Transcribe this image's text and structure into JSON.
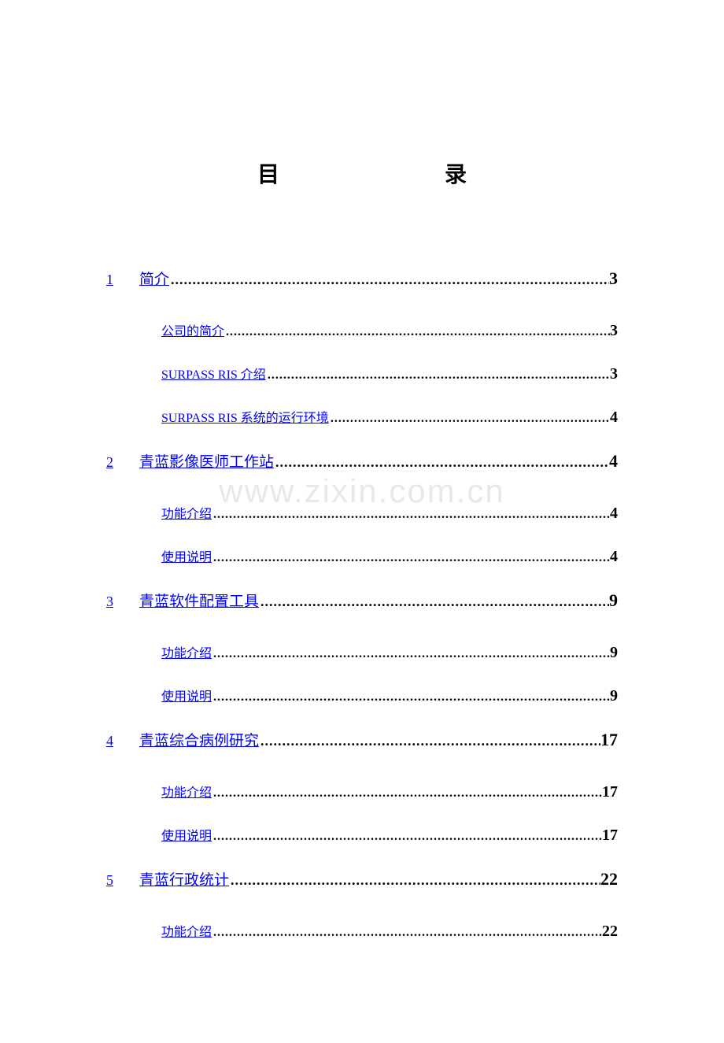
{
  "title": {
    "char1": "目",
    "char2": "录"
  },
  "watermark": "www.zixin.com.cn",
  "colors": {
    "link": "#0000ff",
    "text": "#000000",
    "watermark": "#e8e8e8",
    "background": "#ffffff"
  },
  "fonts": {
    "title_size": 28,
    "level1_label_size": 19,
    "level2_label_size": 16,
    "level1_page_size": 22,
    "level2_page_size": 20
  },
  "toc": [
    {
      "level": 1,
      "number": "1",
      "label": "简介",
      "page": "3",
      "children": [
        {
          "label": "公司的简介",
          "page": "3"
        },
        {
          "label": "SURPASS RIS 介绍",
          "page": "3",
          "smallcap": true
        },
        {
          "label": "SURPASS RIS 系统的运行环境",
          "page": "4",
          "smallcap": true
        }
      ]
    },
    {
      "level": 1,
      "number": "2",
      "label": "青蓝影像医师工作站",
      "page": "4",
      "children": [
        {
          "label": "功能介绍",
          "page": "4"
        },
        {
          "label": "使用说明",
          "page": "4"
        }
      ]
    },
    {
      "level": 1,
      "number": "3",
      "label": "青蓝软件配置工具",
      "page": "9",
      "children": [
        {
          "label": "功能介绍",
          "page": "9"
        },
        {
          "label": "使用说明",
          "page": "9"
        }
      ]
    },
    {
      "level": 1,
      "number": "4",
      "label": "青蓝综合病例研究",
      "page": "17",
      "children": [
        {
          "label": "功能介绍",
          "page": "17"
        },
        {
          "label": "使用说明",
          "page": "17"
        }
      ]
    },
    {
      "level": 1,
      "number": "5",
      "label": "青蓝行政统计",
      "page": "22",
      "children": [
        {
          "label": "功能介绍",
          "page": "22"
        }
      ]
    }
  ]
}
